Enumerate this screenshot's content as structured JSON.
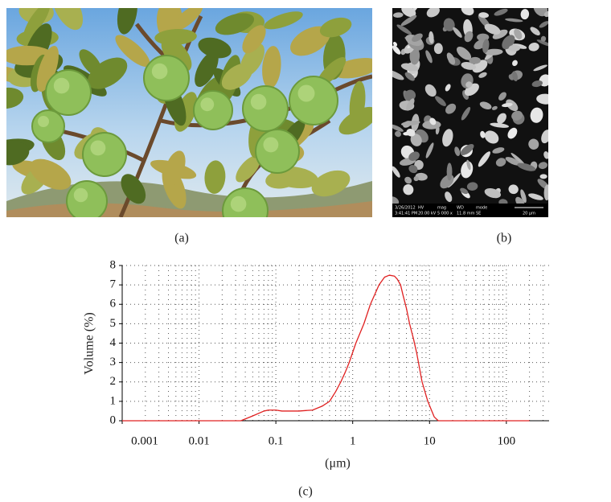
{
  "panel_labels": [
    "(a)",
    "(b)",
    "(c)"
  ],
  "sem_info": {
    "headers": [
      "HV",
      "mag",
      "WD",
      "mode"
    ],
    "date": "3/26/2012",
    "time": "3:41:41 PM",
    "values": [
      "20.00 kV",
      "5 000 x",
      "11.8 mm",
      "SE"
    ],
    "scale": "20 μm"
  },
  "chart_data": {
    "type": "line",
    "xlabel": "(μm)",
    "ylabel": "Volume (%)",
    "xscale": "log",
    "grid": true,
    "color": "#e02020",
    "x": [
      0.001,
      0.01,
      0.035,
      0.05,
      0.07,
      0.08,
      0.1,
      0.12,
      0.15,
      0.2,
      0.3,
      0.4,
      0.5,
      0.6,
      0.7,
      0.8,
      0.9,
      1.1,
      1.4,
      1.7,
      2.2,
      2.6,
      3,
      3.5,
      3.8,
      4.2,
      4.5,
      5,
      5.5,
      6.2,
      6.8,
      8,
      9.5,
      11.5,
      13,
      200
    ],
    "values": [
      0,
      0,
      0,
      0.25,
      0.5,
      0.55,
      0.55,
      0.5,
      0.5,
      0.5,
      0.55,
      0.75,
      1,
      1.5,
      2,
      2.5,
      3,
      4,
      5,
      6,
      7,
      7.4,
      7.5,
      7.45,
      7.3,
      7,
      6.5,
      5.8,
      5,
      4.2,
      3.5,
      2,
      1,
      0.2,
      0,
      0
    ],
    "xlim": [
      0.001,
      360
    ],
    "xticks": [
      0.001,
      0.01,
      0.1,
      1,
      10,
      100
    ],
    "ylim": [
      0,
      8
    ],
    "yticks": [
      0,
      1,
      2,
      3,
      4,
      5,
      6,
      7,
      8
    ]
  }
}
